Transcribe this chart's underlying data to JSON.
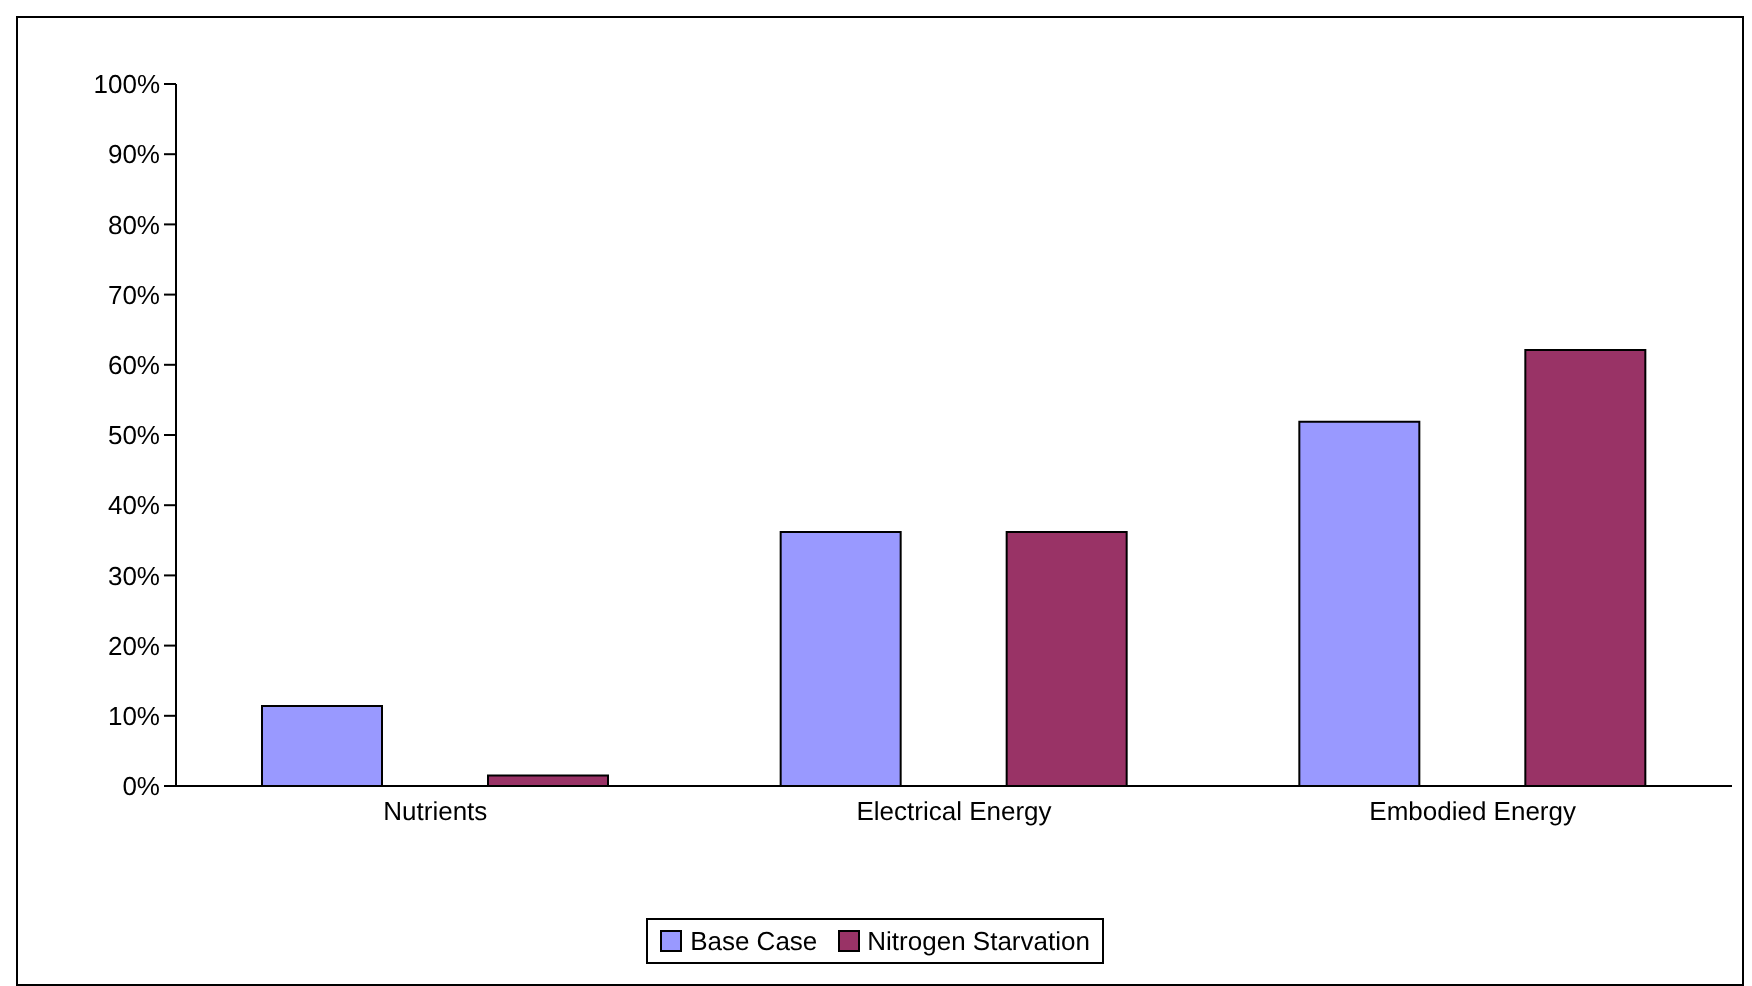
{
  "chart_data": {
    "type": "bar",
    "categories": [
      "Nutrients",
      "Electrical Energy",
      "Embodied Energy"
    ],
    "series": [
      {
        "name": "Base Case",
        "color": "#9999ff",
        "values": [
          11.4,
          36.2,
          51.9
        ]
      },
      {
        "name": "Nitrogen Starvation",
        "color": "#993366",
        "values": [
          1.5,
          36.2,
          62.1
        ]
      }
    ],
    "ylim": [
      0,
      100
    ],
    "yticks": [
      {
        "value": 0,
        "label": "0%"
      },
      {
        "value": 10,
        "label": "10%"
      },
      {
        "value": 20,
        "label": "20%"
      },
      {
        "value": 30,
        "label": "30%"
      },
      {
        "value": 40,
        "label": "40%"
      },
      {
        "value": 50,
        "label": "50%"
      },
      {
        "value": 60,
        "label": "60%"
      },
      {
        "value": 70,
        "label": "70%"
      },
      {
        "value": 80,
        "label": "80%"
      },
      {
        "value": 90,
        "label": "90%"
      },
      {
        "value": 100,
        "label": "100%"
      }
    ],
    "grid": false,
    "legend": "bottom"
  }
}
